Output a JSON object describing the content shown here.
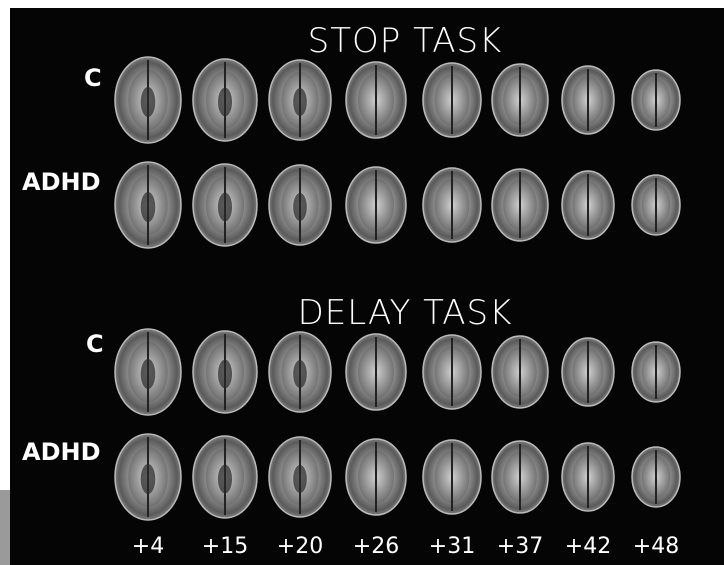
{
  "sections": [
    {
      "title": "STOP TASK",
      "rows": [
        {
          "label": "C"
        },
        {
          "label": "ADHD"
        }
      ]
    },
    {
      "title": "DELAY TASK",
      "rows": [
        {
          "label": "C"
        },
        {
          "label": "ADHD"
        }
      ]
    }
  ],
  "slice_labels": [
    "+4",
    "+15",
    "+20",
    "+26",
    "+31",
    "+37",
    "+42",
    "+48"
  ]
}
